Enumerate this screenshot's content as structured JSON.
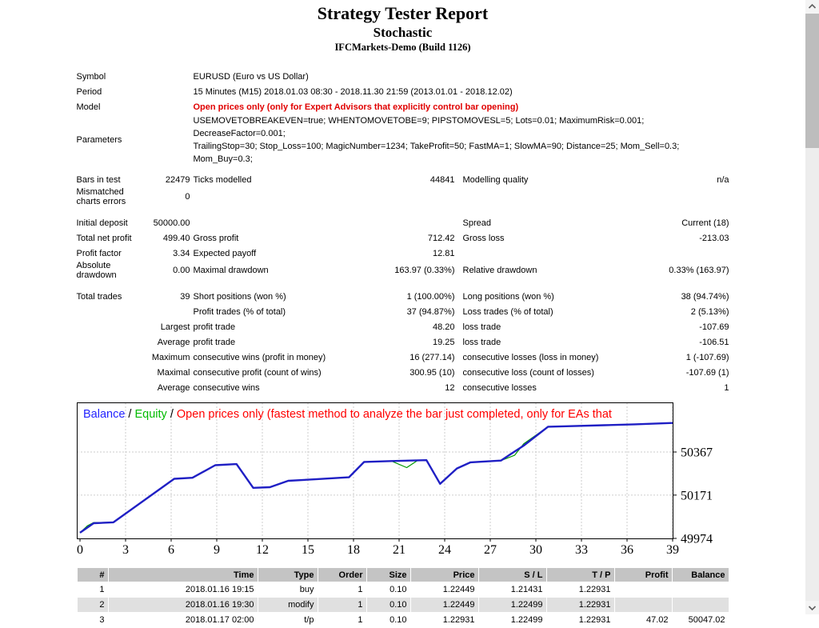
{
  "header": {
    "title": "Strategy Tester Report",
    "subtitle": "Stochastic",
    "build": "IFCMarkets-Demo (Build 1126)"
  },
  "info_rows": [
    {
      "label": "Symbol",
      "value": "EURUSD (Euro vs US Dollar)",
      "accent": "normal"
    },
    {
      "label": "Period",
      "value": "15 Minutes (M15) 2018.01.03 08:30 - 2018.11.30 21:59 (2013.01.01 - 2018.12.02)",
      "accent": "normal"
    },
    {
      "label": "Model",
      "value": "Open prices only (only for Expert Advisors that explicitly control bar opening)",
      "accent": "red"
    },
    {
      "label": "Parameters",
      "value": "USEMOVETOBREAKEVEN=true; WHENTOMOVETOBE=9; PIPSTOMOVESL=5; Lots=0.01; MaximumRisk=0.001; DecreaseFactor=0.001;\nTrailingStop=30; Stop_Loss=100; MagicNumber=1234; TakeProfit=50; FastMA=1; SlowMA=90; Distance=25; Mom_Sell=0.3; Mom_Buy=0.3;",
      "accent": "normal"
    }
  ],
  "stats_sections": [
    {
      "rows": [
        [
          "Bars in test",
          "22479",
          "Ticks modelled",
          "44841",
          "Modelling quality",
          "n/a"
        ],
        [
          "Mismatched charts errors",
          "0",
          "",
          "",
          "",
          ""
        ]
      ]
    },
    {
      "rows": [
        [
          "Initial deposit",
          "50000.00",
          "",
          "",
          "Spread",
          "Current (18)"
        ],
        [
          "Total net profit",
          "499.40",
          "Gross profit",
          "712.42",
          "Gross loss",
          "-213.03"
        ],
        [
          "Profit factor",
          "3.34",
          "Expected payoff",
          "12.81",
          "",
          ""
        ],
        [
          "Absolute drawdown",
          "0.00",
          "Maximal drawdown",
          "163.97 (0.33%)",
          "Relative drawdown",
          "0.33% (163.97)"
        ]
      ]
    },
    {
      "rows": [
        [
          "Total trades",
          "39",
          "Short positions (won %)",
          "1 (100.00%)",
          "Long positions (won %)",
          "38 (94.74%)"
        ],
        [
          "",
          "",
          "Profit trades (% of total)",
          "37 (94.87%)",
          "Loss trades (% of total)",
          "2 (5.13%)"
        ],
        [
          "",
          "Largest",
          "profit trade",
          "48.20",
          "loss trade",
          "-107.69"
        ],
        [
          "",
          "Average",
          "profit trade",
          "19.25",
          "loss trade",
          "-106.51"
        ],
        [
          "",
          "Maximum",
          "consecutive wins (profit in money)",
          "16 (277.14)",
          "consecutive losses (loss in money)",
          "1 (-107.69)"
        ],
        [
          "",
          "Maximal",
          "consecutive profit (count of wins)",
          "300.95 (10)",
          "consecutive loss (count of losses)",
          "-107.69 (1)"
        ],
        [
          "",
          "Average",
          "consecutive wins",
          "12",
          "consecutive losses",
          "1"
        ]
      ]
    }
  ],
  "chart_data": {
    "type": "line",
    "legend": [
      {
        "label": "Balance",
        "color": "#2222ff"
      },
      {
        "label": "Equity",
        "color": "#00bb00"
      },
      {
        "label": "Open prices only (fastest method to analyze the bar just completed, only for EAs that",
        "color": "#ff0000"
      }
    ],
    "legend_separator": " / ",
    "x_ticks": [
      0,
      3,
      6,
      9,
      12,
      15,
      18,
      21,
      24,
      27,
      30,
      33,
      36,
      39
    ],
    "y_ticks": [
      50367,
      50171,
      49974
    ],
    "xlim": [
      0,
      39
    ],
    "ylim": [
      49963,
      50590
    ],
    "grid": true,
    "series": [
      {
        "name": "Equity",
        "color": "#009900",
        "width": 1.2,
        "points": [
          [
            0,
            50000
          ],
          [
            0.5,
            50032
          ],
          [
            0.9,
            50046
          ],
          [
            2.2,
            50047
          ],
          [
            6.2,
            50245
          ],
          [
            7.4,
            50250
          ],
          [
            8.9,
            50307
          ],
          [
            10.3,
            50312
          ],
          [
            11.4,
            50204
          ],
          [
            12.5,
            50207
          ],
          [
            13.7,
            50236
          ],
          [
            15.5,
            50243
          ],
          [
            17.7,
            50252
          ],
          [
            18.7,
            50322
          ],
          [
            20.5,
            50326
          ],
          [
            21.5,
            50296
          ],
          [
            22.2,
            50328
          ],
          [
            22.8,
            50330
          ],
          [
            23.7,
            50222
          ],
          [
            24.8,
            50292
          ],
          [
            25.7,
            50320
          ],
          [
            27.7,
            50328
          ],
          [
            28.6,
            50352
          ],
          [
            29.2,
            50404
          ],
          [
            30.8,
            50482
          ],
          [
            32.5,
            50485
          ],
          [
            34.5,
            50489
          ],
          [
            36.5,
            50493
          ],
          [
            39,
            50499
          ]
        ]
      },
      {
        "name": "Balance",
        "color": "#1f1fc4",
        "width": 2.4,
        "points": [
          [
            0,
            50000
          ],
          [
            0.9,
            50043
          ],
          [
            2.2,
            50047
          ],
          [
            6.2,
            50245
          ],
          [
            7.4,
            50250
          ],
          [
            8.9,
            50307
          ],
          [
            10.3,
            50312
          ],
          [
            11.4,
            50204
          ],
          [
            12.5,
            50207
          ],
          [
            13.7,
            50236
          ],
          [
            15.5,
            50243
          ],
          [
            17.7,
            50252
          ],
          [
            18.7,
            50322
          ],
          [
            20.5,
            50326
          ],
          [
            22.8,
            50330
          ],
          [
            23.7,
            50222
          ],
          [
            24.8,
            50292
          ],
          [
            25.7,
            50320
          ],
          [
            27.7,
            50328
          ],
          [
            29.2,
            50396
          ],
          [
            30.8,
            50482
          ],
          [
            32.5,
            50485
          ],
          [
            34.5,
            50489
          ],
          [
            36.5,
            50493
          ],
          [
            39,
            50499
          ]
        ]
      }
    ]
  },
  "trade_table": {
    "headers": [
      "#",
      "Time",
      "Type",
      "Order",
      "Size",
      "Price",
      "S / L",
      "T / P",
      "Profit",
      "Balance"
    ],
    "rows": [
      [
        "1",
        "2018.01.16 19:15",
        "buy",
        "1",
        "0.10",
        "1.22449",
        "1.21431",
        "1.22931",
        "",
        ""
      ],
      [
        "2",
        "2018.01.16 19:30",
        "modify",
        "1",
        "0.10",
        "1.22449",
        "1.22499",
        "1.22931",
        "",
        ""
      ],
      [
        "3",
        "2018.01.17 02:00",
        "t/p",
        "1",
        "0.10",
        "1.22931",
        "1.22499",
        "1.22931",
        "47.02",
        "50047.02"
      ]
    ]
  }
}
